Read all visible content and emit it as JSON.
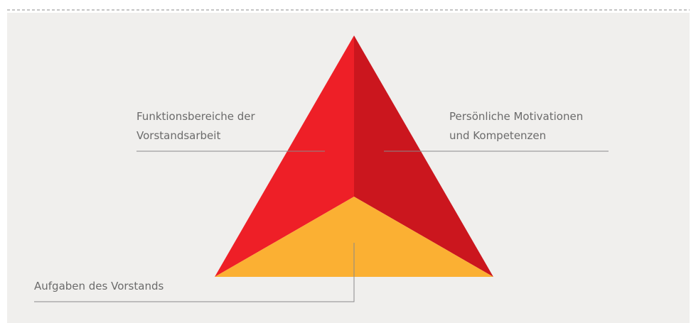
{
  "diagram": {
    "labels": [
      "Funktionsbereiche der",
      "Vorstandsarbeit",
      "Persönliche Motivationen",
      "und Kompetenzen",
      "Aufgaben des Vorstands"
    ]
  }
}
